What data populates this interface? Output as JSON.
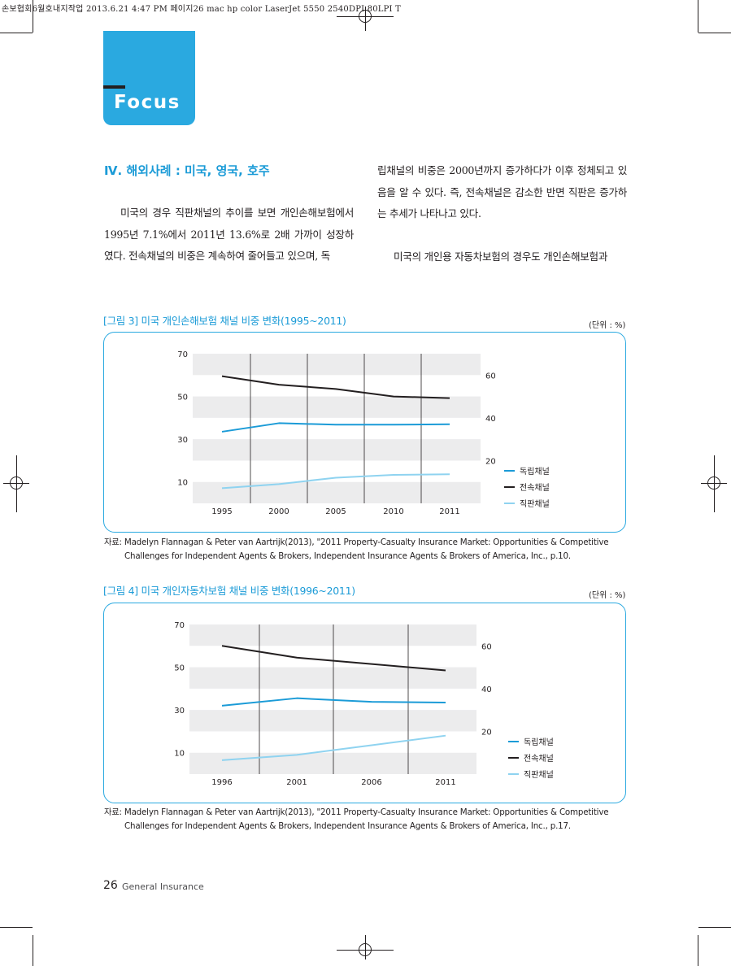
{
  "print_header": "손보협회6월호내지작업  2013.6.21 4:47 PM  페이지26    mac hp color LaserJet 5550  2540DPI 80LPI  T",
  "focus_label": "Focus",
  "section_title": "Ⅳ. 해외사례 : 미국, 영국, 호주",
  "left_column": [
    "미국의 경우 직판채널의 추이를 보면 개인손해보험에서 1995년 7.1%에서 2011년 13.6%로 2배 가까이 성장하였다. 전속채널의 비중은 계속하여 줄어들고 있으며, 독"
  ],
  "right_column": [
    "립채널의 비중은 2000년까지 증가하다가 이후 정체되고 있음을 알 수 있다. 즉, 전속채널은 감소한 반면 직판은 증가하는 추세가 나타나고 있다.",
    "미국의 개인용 자동차보험의 경우도 개인손해보험과"
  ],
  "figures": [
    {
      "title": "[그림 3] 미국 개인손해보험 채널 비중 변화(1995~2011)",
      "unit": "(단위 : %)",
      "source_line1": "자료: Madelyn Flannagan & Peter van Aartrijk(2013), \"2011 Property-Casualty Insurance Market: Opportunities & Competitive",
      "source_line2": "Challenges for Independent Agents & Brokers, Independent Insurance Agents & Brokers of America, Inc., p.10."
    },
    {
      "title": "[그림 4] 미국 개인자동차보험 채널 비중 변화(1996~2011)",
      "unit": "(단위 : %)",
      "source_line1": "자료: Madelyn Flannagan & Peter van Aartrijk(2013), \"2011 Property-Casualty Insurance Market: Opportunities & Competitive",
      "source_line2": "Challenges for Independent Agents & Brokers, Independent Insurance Agents & Brokers of America, Inc., p.17."
    }
  ],
  "chart_data": [
    {
      "type": "line",
      "x": [
        "1995",
        "2000",
        "2005",
        "2010",
        "2011"
      ],
      "left_axis_ticks": [
        "70",
        "50",
        "30",
        "10"
      ],
      "right_axis_ticks": [
        "60",
        "40",
        "20"
      ],
      "ylim": [
        0,
        70
      ],
      "series": [
        {
          "name": "독립채널",
          "color": "#1b9bd7",
          "values": [
            33.5,
            37.5,
            36.8,
            36.8,
            37.0
          ]
        },
        {
          "name": "전속채널",
          "color": "#231f20",
          "values": [
            59.5,
            55.5,
            53.5,
            50.0,
            49.2
          ]
        },
        {
          "name": "직판채널",
          "color": "#8fd3f0",
          "values": [
            7.1,
            9.0,
            12.0,
            13.3,
            13.6
          ]
        }
      ]
    },
    {
      "type": "line",
      "x": [
        "1996",
        "2001",
        "2006",
        "2011"
      ],
      "left_axis_ticks": [
        "70",
        "50",
        "30",
        "10"
      ],
      "right_axis_ticks": [
        "60",
        "40",
        "20"
      ],
      "ylim": [
        0,
        70
      ],
      "series": [
        {
          "name": "독립채널",
          "color": "#1b9bd7",
          "values": [
            32.0,
            35.5,
            33.8,
            33.5
          ]
        },
        {
          "name": "전속채널",
          "color": "#231f20",
          "values": [
            60.0,
            54.5,
            51.5,
            48.5
          ]
        },
        {
          "name": "직판채널",
          "color": "#8fd3f0",
          "values": [
            6.5,
            9.0,
            13.5,
            18.0
          ]
        }
      ]
    }
  ],
  "footer": {
    "page_number": "26",
    "label": "General Insurance"
  }
}
